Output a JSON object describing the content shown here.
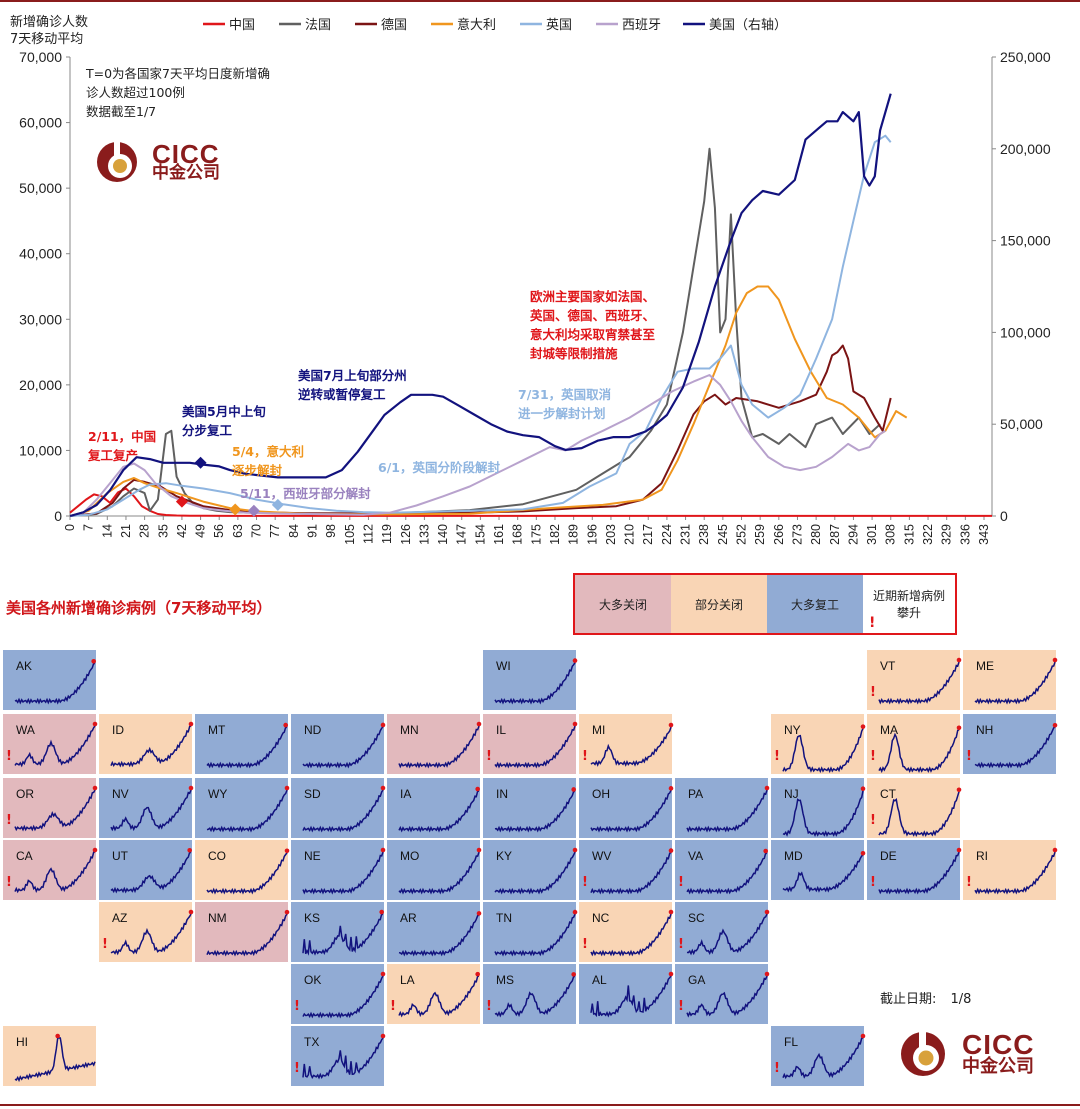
{
  "chart_data": {
    "type": "line",
    "title": "",
    "ylabel": "新增确诊人数 7天移动平均",
    "ylabel_lines": [
      "新增确诊人数",
      "7天移动平均"
    ],
    "ylim": [
      0,
      70000
    ],
    "y2lim": [
      0,
      250000
    ],
    "yticks": [
      0,
      10000,
      20000,
      30000,
      40000,
      50000,
      60000,
      70000
    ],
    "ytick_labels": [
      "0",
      "10,000",
      "20,000",
      "30,000",
      "40,000",
      "50,000",
      "60,000",
      "70,000"
    ],
    "y2ticks": [
      0,
      50000,
      100000,
      150000,
      200000,
      250000
    ],
    "y2tick_labels": [
      "0",
      "50,000",
      "100,000",
      "150,000",
      "200,000",
      "250,000"
    ],
    "xlim": [
      0,
      346
    ],
    "xtick_labels": [
      "0",
      "7",
      "14",
      "21",
      "28",
      "35",
      "42",
      "49",
      "56",
      "63",
      "70",
      "77",
      "84",
      "91",
      "98",
      "105",
      "112",
      "119",
      "126",
      "133",
      "140",
      "147",
      "154",
      "161",
      "168",
      "175",
      "182",
      "189",
      "196",
      "203",
      "210",
      "217",
      "224",
      "231",
      "238",
      "245",
      "252",
      "259",
      "266",
      "273",
      "280",
      "287",
      "294",
      "301",
      "308",
      "315",
      "322",
      "329",
      "336",
      "343"
    ],
    "legend": [
      "中国",
      "法国",
      "德国",
      "意大利",
      "英国",
      "西班牙",
      "美国（右轴）"
    ],
    "series": [
      {
        "name": "中国",
        "color": "#e0161a",
        "axis": "left",
        "x": [
          0,
          3,
          6,
          9,
          12,
          15,
          18,
          21,
          24,
          27,
          30,
          33,
          36,
          40,
          45,
          50,
          60,
          80,
          120,
          200,
          346
        ],
        "values": [
          500,
          1500,
          2500,
          3300,
          3000,
          2000,
          3600,
          4200,
          3000,
          1500,
          800,
          300,
          150,
          80,
          50,
          30,
          20,
          15,
          15,
          15,
          15
        ]
      },
      {
        "name": "法国",
        "color": "#606060",
        "axis": "left",
        "x": [
          0,
          10,
          16,
          20,
          24,
          28,
          30,
          33,
          36,
          38,
          40,
          43,
          46,
          50,
          55,
          60,
          70,
          90,
          120,
          150,
          170,
          190,
          200,
          210,
          218,
          224,
          230,
          234,
          238,
          240,
          242,
          244,
          246,
          248,
          250,
          252,
          256,
          260,
          266,
          270,
          276,
          280,
          286,
          290,
          296,
          300,
          304
        ],
        "values": [
          0,
          300,
          1500,
          3000,
          4200,
          3500,
          800,
          2500,
          12500,
          13000,
          6000,
          3500,
          2000,
          1200,
          800,
          600,
          500,
          400,
          400,
          900,
          1800,
          4000,
          6500,
          9000,
          13000,
          17000,
          28000,
          38000,
          48000,
          56000,
          47000,
          28000,
          30000,
          46000,
          30000,
          18000,
          12000,
          12500,
          11000,
          12500,
          10500,
          14000,
          15000,
          12500,
          15000,
          12500,
          14000
        ]
      },
      {
        "name": "德国",
        "color": "#7b1414",
        "axis": "left",
        "x": [
          0,
          10,
          16,
          20,
          24,
          28,
          34,
          40,
          50,
          60,
          70,
          90,
          120,
          150,
          170,
          190,
          205,
          215,
          222,
          228,
          234,
          238,
          242,
          246,
          250,
          258,
          266,
          274,
          280,
          284,
          286,
          288,
          290,
          292,
          294,
          298,
          302,
          305,
          308
        ],
        "values": [
          0,
          400,
          2000,
          4200,
          5500,
          5200,
          4500,
          3000,
          1500,
          900,
          600,
          400,
          400,
          500,
          700,
          1200,
          1500,
          2500,
          5000,
          10000,
          15500,
          17500,
          18500,
          17000,
          18000,
          17500,
          16500,
          17500,
          18500,
          22000,
          24500,
          25000,
          26000,
          24000,
          19000,
          18000,
          15000,
          13000,
          18000
        ]
      },
      {
        "name": "意大利",
        "color": "#f0961e",
        "axis": "left",
        "x": [
          0,
          7,
          14,
          20,
          24,
          28,
          34,
          40,
          50,
          60,
          70,
          90,
          120,
          150,
          180,
          200,
          215,
          222,
          228,
          234,
          240,
          246,
          250,
          254,
          258,
          262,
          266,
          272,
          278,
          284,
          290,
          296,
          302,
          306,
          310,
          314
        ],
        "values": [
          0,
          800,
          3500,
          5200,
          5800,
          5000,
          4200,
          3500,
          2200,
          1200,
          700,
          300,
          250,
          350,
          1200,
          1700,
          2500,
          4000,
          8500,
          14000,
          20000,
          26000,
          31000,
          34000,
          35000,
          35000,
          33000,
          27000,
          22000,
          18000,
          17000,
          15000,
          12000,
          13000,
          16000,
          15000
        ]
      },
      {
        "name": "英国",
        "color": "#8fb5e0",
        "axis": "left",
        "x": [
          0,
          7,
          14,
          20,
          26,
          30,
          36,
          42,
          50,
          60,
          70,
          80,
          90,
          100,
          110,
          120,
          130,
          150,
          170,
          185,
          195,
          205,
          210,
          216,
          222,
          228,
          234,
          240,
          244,
          248,
          252,
          256,
          262,
          268,
          274,
          280,
          286,
          290,
          294,
          298,
          302,
          306,
          308
        ],
        "values": [
          0,
          200,
          1000,
          2500,
          4000,
          4800,
          5000,
          4600,
          4200,
          3500,
          2500,
          1800,
          1200,
          800,
          600,
          500,
          600,
          800,
          1000,
          2000,
          4500,
          6500,
          11000,
          13000,
          18000,
          22000,
          22500,
          22500,
          24000,
          26000,
          20000,
          17000,
          15000,
          16500,
          18500,
          24000,
          30000,
          38000,
          45000,
          52000,
          57000,
          58000,
          57000
        ]
      },
      {
        "name": "西班牙",
        "color": "#b8a2cd",
        "axis": "left",
        "x": [
          0,
          5,
          10,
          15,
          20,
          24,
          28,
          32,
          38,
          44,
          50,
          58,
          66,
          76,
          90,
          110,
          120,
          130,
          140,
          150,
          160,
          170,
          180,
          186,
          192,
          200,
          210,
          218,
          226,
          234,
          240,
          244,
          248,
          252,
          256,
          262,
          268,
          274,
          280,
          286,
          292,
          296,
          300,
          304,
          306
        ],
        "values": [
          0,
          500,
          2500,
          5000,
          7500,
          8000,
          7000,
          5000,
          3000,
          2000,
          1200,
          800,
          500,
          400,
          300,
          200,
          500,
          1600,
          3000,
          4500,
          6500,
          8500,
          10500,
          10000,
          11500,
          13000,
          15000,
          17000,
          19000,
          20500,
          21500,
          20000,
          17500,
          14500,
          12000,
          9000,
          7500,
          7000,
          7500,
          9000,
          11000,
          10000,
          10500,
          12500,
          13000
        ]
      },
      {
        "name": "美国（右轴）",
        "color": "#12127e",
        "axis": "right",
        "x": [
          0,
          5,
          10,
          15,
          20,
          25,
          30,
          35,
          40,
          45,
          50,
          56,
          60,
          66,
          72,
          78,
          84,
          90,
          96,
          102,
          108,
          114,
          118,
          124,
          128,
          132,
          136,
          140,
          146,
          152,
          158,
          164,
          170,
          176,
          182,
          186,
          192,
          198,
          204,
          210,
          216,
          220,
          224,
          230,
          236,
          242,
          248,
          252,
          256,
          260,
          266,
          272,
          276,
          280,
          284,
          288,
          290,
          294,
          296,
          298,
          300,
          302,
          304,
          306,
          308
        ],
        "values": [
          0,
          2000,
          6000,
          14000,
          25000,
          32000,
          31000,
          29000,
          29000,
          29000,
          28000,
          27000,
          25000,
          23000,
          22000,
          21000,
          21000,
          21000,
          21000,
          25000,
          35000,
          47000,
          55000,
          62000,
          66000,
          66000,
          66000,
          65000,
          60000,
          55000,
          50000,
          46000,
          44000,
          43000,
          38000,
          36000,
          37000,
          41000,
          43000,
          43000,
          46000,
          50000,
          55000,
          70000,
          95000,
          125000,
          150000,
          165000,
          172000,
          177000,
          175000,
          183000,
          205000,
          210000,
          215000,
          215000,
          220000,
          215000,
          220000,
          185000,
          180000,
          185000,
          210000,
          220000,
          230000
        ]
      }
    ],
    "annotations": [
      {
        "text": "T=0为各国家7天平均日度新增确诊人数超过100例",
        "lines": [
          "T=0为各国家7天平均日度新增确",
          "诊人数超过100例"
        ],
        "color": "#222222"
      },
      {
        "text": "数据截至1/7",
        "color": "#222222"
      },
      {
        "text": "2/11，中国复工复产",
        "lines": [
          "2/11，中国",
          "复工复产"
        ],
        "color": "#e0161a"
      },
      {
        "text": "美国5月中上旬分步复工",
        "lines": [
          "美国5月中上旬",
          "分步复工"
        ],
        "color": "#12127e"
      },
      {
        "text": "5/4，意大利逐步解封",
        "lines": [
          "5/4，意大利",
          "逐步解封"
        ],
        "color": "#f0961e"
      },
      {
        "text": "5/11，西班牙部分解封",
        "color": "#9a82bf"
      },
      {
        "text": "美国7月上旬部分州逆转或暂停复工",
        "lines": [
          "美国7月上旬部分州",
          "逆转或暂停复工"
        ],
        "color": "#12127e"
      },
      {
        "text": "6/1，英国分阶段解封",
        "color": "#8fb5e0"
      },
      {
        "text": "7/31，英国取消进一步解封计划",
        "lines": [
          "7/31，英国取消",
          "进一步解封计划"
        ],
        "color": "#8fb5e0"
      },
      {
        "text": "欧洲主要国家如法国、英国、德国、西班牙、意大利均采取宵禁甚至封城等限制措施",
        "lines": [
          "欧洲主要国家如法国、",
          "英国、德国、西班牙、",
          "意大利均采取宵禁甚至",
          "封城等限制措施"
        ],
        "color": "#e0161a"
      }
    ]
  },
  "logo": {
    "en": "CICC",
    "cn": "中金公司"
  },
  "states_section": {
    "title": "美国各州新增确诊病例（7天移动平均）",
    "legend": {
      "mostly_closed": "大多关闭",
      "partly_closed": "部分关闭",
      "mostly_reopened": "大多复工",
      "rising": "近期新增病例攀升",
      "rising_lines": [
        "近期新增病例",
        "攀升"
      ],
      "rising_mark": "!"
    },
    "status_colors": {
      "closed": "#e2b9bd",
      "partial": "#f9d5b5",
      "reopened": "#91abd4"
    },
    "line_color": "#12127e",
    "peak_marker_color": "#e0161a",
    "cutoff_label": "截止日期:",
    "cutoff_value": "1/8",
    "states": [
      {
        "abbr": "AK",
        "status": "reopened",
        "rising": false,
        "shape": "late"
      },
      {
        "abbr": "WI",
        "status": "reopened",
        "rising": false,
        "shape": "late"
      },
      {
        "abbr": "VT",
        "status": "partial",
        "rising": true,
        "shape": "late"
      },
      {
        "abbr": "ME",
        "status": "partial",
        "rising": false,
        "shape": "late"
      },
      {
        "abbr": "WA",
        "status": "closed",
        "rising": true,
        "shape": "triple"
      },
      {
        "abbr": "ID",
        "status": "partial",
        "rising": false,
        "shape": "midlate"
      },
      {
        "abbr": "MT",
        "status": "reopened",
        "rising": false,
        "shape": "late"
      },
      {
        "abbr": "ND",
        "status": "reopened",
        "rising": false,
        "shape": "late"
      },
      {
        "abbr": "MN",
        "status": "closed",
        "rising": false,
        "shape": "late"
      },
      {
        "abbr": "IL",
        "status": "closed",
        "rising": true,
        "shape": "late"
      },
      {
        "abbr": "MI",
        "status": "partial",
        "rising": true,
        "shape": "early_late"
      },
      {
        "abbr": "NY",
        "status": "partial",
        "rising": true,
        "shape": "early"
      },
      {
        "abbr": "MA",
        "status": "partial",
        "rising": true,
        "shape": "early"
      },
      {
        "abbr": "NH",
        "status": "reopened",
        "rising": true,
        "shape": "late"
      },
      {
        "abbr": "OR",
        "status": "closed",
        "rising": true,
        "shape": "midlate"
      },
      {
        "abbr": "NV",
        "status": "reopened",
        "rising": false,
        "shape": "triple"
      },
      {
        "abbr": "WY",
        "status": "reopened",
        "rising": false,
        "shape": "late"
      },
      {
        "abbr": "SD",
        "status": "reopened",
        "rising": false,
        "shape": "late"
      },
      {
        "abbr": "IA",
        "status": "reopened",
        "rising": false,
        "shape": "late"
      },
      {
        "abbr": "IN",
        "status": "reopened",
        "rising": false,
        "shape": "late"
      },
      {
        "abbr": "OH",
        "status": "reopened",
        "rising": false,
        "shape": "late"
      },
      {
        "abbr": "PA",
        "status": "reopened",
        "rising": false,
        "shape": "late"
      },
      {
        "abbr": "NJ",
        "status": "reopened",
        "rising": false,
        "shape": "early"
      },
      {
        "abbr": "CT",
        "status": "partial",
        "rising": true,
        "shape": "early"
      },
      {
        "abbr": "CA",
        "status": "closed",
        "rising": true,
        "shape": "triple"
      },
      {
        "abbr": "UT",
        "status": "reopened",
        "rising": false,
        "shape": "midlate"
      },
      {
        "abbr": "CO",
        "status": "partial",
        "rising": false,
        "shape": "late"
      },
      {
        "abbr": "NE",
        "status": "reopened",
        "rising": false,
        "shape": "late"
      },
      {
        "abbr": "MO",
        "status": "reopened",
        "rising": false,
        "shape": "late"
      },
      {
        "abbr": "KY",
        "status": "reopened",
        "rising": false,
        "shape": "late"
      },
      {
        "abbr": "WV",
        "status": "reopened",
        "rising": true,
        "shape": "late"
      },
      {
        "abbr": "VA",
        "status": "reopened",
        "rising": true,
        "shape": "late"
      },
      {
        "abbr": "MD",
        "status": "reopened",
        "rising": false,
        "shape": "early_late"
      },
      {
        "abbr": "DE",
        "status": "reopened",
        "rising": true,
        "shape": "late"
      },
      {
        "abbr": "RI",
        "status": "partial",
        "rising": true,
        "shape": "late"
      },
      {
        "abbr": "AZ",
        "status": "partial",
        "rising": true,
        "shape": "triple"
      },
      {
        "abbr": "NM",
        "status": "closed",
        "rising": false,
        "shape": "late"
      },
      {
        "abbr": "KS",
        "status": "reopened",
        "rising": false,
        "shape": "spiky"
      },
      {
        "abbr": "AR",
        "status": "reopened",
        "rising": false,
        "shape": "late"
      },
      {
        "abbr": "TN",
        "status": "reopened",
        "rising": false,
        "shape": "late"
      },
      {
        "abbr": "NC",
        "status": "partial",
        "rising": true,
        "shape": "late"
      },
      {
        "abbr": "SC",
        "status": "reopened",
        "rising": true,
        "shape": "triple"
      },
      {
        "abbr": "OK",
        "status": "reopened",
        "rising": true,
        "shape": "late"
      },
      {
        "abbr": "LA",
        "status": "partial",
        "rising": true,
        "shape": "triple"
      },
      {
        "abbr": "MS",
        "status": "reopened",
        "rising": true,
        "shape": "triple"
      },
      {
        "abbr": "AL",
        "status": "reopened",
        "rising": false,
        "shape": "spiky"
      },
      {
        "abbr": "GA",
        "status": "reopened",
        "rising": true,
        "shape": "triple"
      },
      {
        "abbr": "HI",
        "status": "partial",
        "rising": false,
        "shape": "hi"
      },
      {
        "abbr": "TX",
        "status": "reopened",
        "rising": true,
        "shape": "spiky"
      },
      {
        "abbr": "FL",
        "status": "reopened",
        "rising": true,
        "shape": "triple"
      }
    ]
  }
}
